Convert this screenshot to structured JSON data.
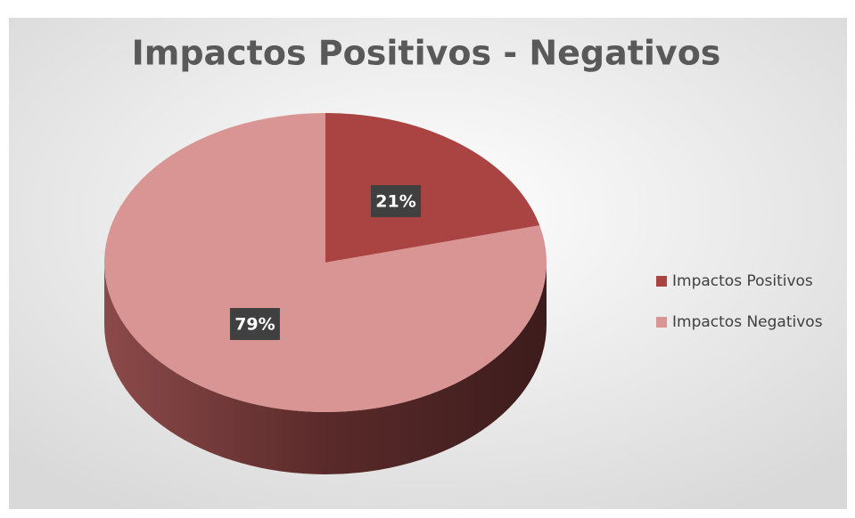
{
  "chart_data": {
    "type": "pie",
    "title": "Impactos Positivos - Negativos",
    "categories": [
      "Impactos Positivos",
      "Impactos Negativos"
    ],
    "values": [
      21,
      79
    ],
    "value_labels": [
      "21%",
      "79%"
    ],
    "colors": [
      "#a94442",
      "#d99594"
    ],
    "legend": "right"
  }
}
